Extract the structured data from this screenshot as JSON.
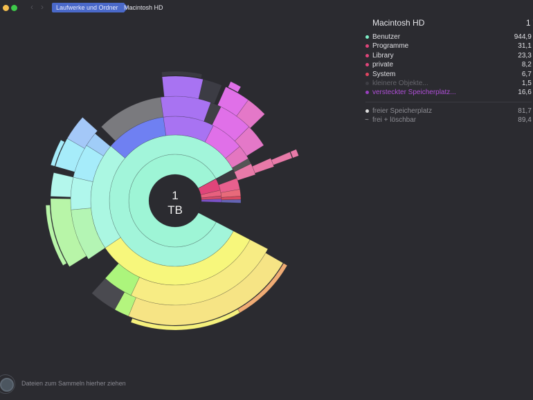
{
  "window": {
    "traffic_lights": [
      {
        "name": "minimize",
        "color": "#f5bf4f"
      },
      {
        "name": "zoom",
        "color": "#3ec94a"
      }
    ],
    "nav": {
      "back": "‹",
      "forward": "›"
    },
    "breadcrumb": [
      "Laufwerke und Ordner",
      "Macintosh HD"
    ]
  },
  "chart": {
    "center_value": "1",
    "center_unit": "TB"
  },
  "panel": {
    "title": "Macintosh HD",
    "total": "1 TB",
    "items": [
      {
        "label": "Benutzer",
        "value": "944,9 GB",
        "color": "#7ef0c8",
        "text_color": "#e0e0e4"
      },
      {
        "label": "Programme",
        "value": "31,1 GB",
        "color": "#e0457a",
        "text_color": "#e0e0e4"
      },
      {
        "label": "Library",
        "value": "23,3 GB",
        "color": "#e0457a",
        "text_color": "#e0e0e4"
      },
      {
        "label": "private",
        "value": "8,2 GB",
        "color": "#e0457a",
        "text_color": "#e0e0e4"
      },
      {
        "label": "System",
        "value": "6,7 GB",
        "color": "#e04560",
        "text_color": "#e0e0e4"
      },
      {
        "label": "kleinere Objekte...",
        "value": "1,5 GB",
        "color": "#3e3e44",
        "text_color": "#66666c"
      },
      {
        "label": "versteckter Speicherplatz...",
        "value": "16,6 GB",
        "color": "#9b3fc0",
        "text_color": "#b04fd8"
      }
    ],
    "footer": [
      {
        "label": "freier Speicherplatz",
        "value": "81,7 GB",
        "icon": "dot"
      },
      {
        "label": "frei + löschbar",
        "value": "89,4 GB",
        "icon": "~"
      }
    ]
  },
  "dropzone": {
    "text": "Dateien zum Sammeln hierher ziehen"
  }
}
